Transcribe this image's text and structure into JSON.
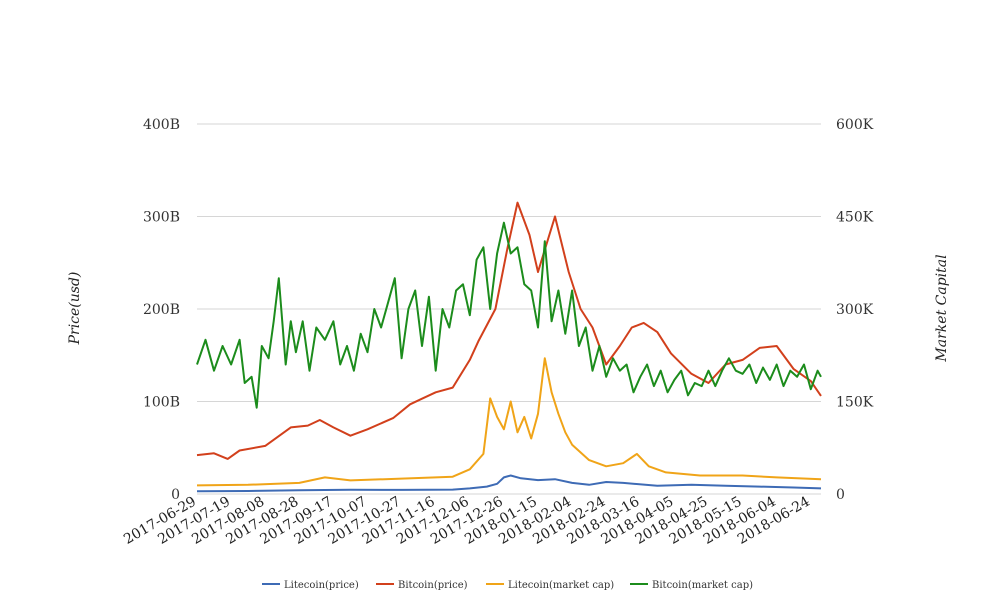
{
  "chart_data": {
    "type": "line",
    "x_range": [
      "2017-06-29",
      "2018-06-30"
    ],
    "x_ticks": [
      "2017-06-29",
      "2017-07-19",
      "2017-08-08",
      "2017-08-28",
      "2017-09-17",
      "2017-10-07",
      "2017-10-27",
      "2017-11-16",
      "2017-12-06",
      "2017-12-26",
      "2018-01-15",
      "2018-02-04",
      "2018-02-24",
      "2018-03-16",
      "2018-04-05",
      "2018-04-25",
      "2018-05-15",
      "2018-06-04",
      "2018-06-24"
    ],
    "y_left": {
      "label": "Price(usd)",
      "ticks": [
        "0",
        "100B",
        "200B",
        "300B",
        "400B"
      ],
      "range": [
        0,
        400
      ]
    },
    "y_right": {
      "label": "Market Capital",
      "ticks": [
        "0",
        "150K",
        "300K",
        "450K",
        "600K"
      ],
      "range": [
        0,
        600
      ]
    },
    "grid": true,
    "legend_position": "bottom",
    "series": [
      {
        "name": "Litecoin(price)",
        "color": "#3e6bb5",
        "axis": "left",
        "values": [
          [
            0,
            3
          ],
          [
            30,
            3.2
          ],
          [
            60,
            4
          ],
          [
            90,
            4.5
          ],
          [
            120,
            4.4
          ],
          [
            150,
            4.8
          ],
          [
            160,
            6
          ],
          [
            170,
            8
          ],
          [
            176,
            11
          ],
          [
            180,
            18
          ],
          [
            184,
            20
          ],
          [
            190,
            17
          ],
          [
            200,
            15
          ],
          [
            210,
            16
          ],
          [
            220,
            12
          ],
          [
            230,
            10
          ],
          [
            240,
            13
          ],
          [
            250,
            12
          ],
          [
            270,
            9
          ],
          [
            290,
            10
          ],
          [
            310,
            9
          ],
          [
            330,
            8
          ],
          [
            350,
            7
          ],
          [
            366,
            6
          ]
        ]
      },
      {
        "name": "Bitcoin(price)",
        "color": "#d2401c",
        "axis": "left",
        "values": [
          [
            0,
            42
          ],
          [
            10,
            44
          ],
          [
            18,
            38
          ],
          [
            25,
            47
          ],
          [
            40,
            52
          ],
          [
            55,
            72
          ],
          [
            65,
            74
          ],
          [
            72,
            80
          ],
          [
            80,
            72
          ],
          [
            90,
            63
          ],
          [
            100,
            70
          ],
          [
            115,
            82
          ],
          [
            125,
            97
          ],
          [
            132,
            103
          ],
          [
            140,
            110
          ],
          [
            150,
            115
          ],
          [
            160,
            145
          ],
          [
            165,
            165
          ],
          [
            175,
            200
          ],
          [
            182,
            265
          ],
          [
            188,
            315
          ],
          [
            195,
            280
          ],
          [
            200,
            240
          ],
          [
            205,
            270
          ],
          [
            210,
            300
          ],
          [
            218,
            240
          ],
          [
            225,
            200
          ],
          [
            232,
            180
          ],
          [
            240,
            140
          ],
          [
            248,
            160
          ],
          [
            255,
            180
          ],
          [
            262,
            185
          ],
          [
            270,
            175
          ],
          [
            278,
            152
          ],
          [
            290,
            130
          ],
          [
            300,
            120
          ],
          [
            310,
            140
          ],
          [
            320,
            145
          ],
          [
            330,
            158
          ],
          [
            340,
            160
          ],
          [
            350,
            135
          ],
          [
            360,
            122
          ],
          [
            366,
            106
          ]
        ]
      },
      {
        "name": "Litecoin(market cap)",
        "color": "#f0a418",
        "axis": "right",
        "values": [
          [
            0,
            14
          ],
          [
            30,
            15
          ],
          [
            60,
            18
          ],
          [
            75,
            27
          ],
          [
            90,
            22
          ],
          [
            120,
            25
          ],
          [
            150,
            28
          ],
          [
            160,
            40
          ],
          [
            168,
            65
          ],
          [
            172,
            155
          ],
          [
            176,
            125
          ],
          [
            180,
            105
          ],
          [
            184,
            150
          ],
          [
            188,
            100
          ],
          [
            192,
            125
          ],
          [
            196,
            90
          ],
          [
            200,
            130
          ],
          [
            204,
            220
          ],
          [
            208,
            165
          ],
          [
            212,
            130
          ],
          [
            216,
            100
          ],
          [
            220,
            80
          ],
          [
            230,
            55
          ],
          [
            240,
            45
          ],
          [
            250,
            50
          ],
          [
            258,
            65
          ],
          [
            265,
            45
          ],
          [
            275,
            35
          ],
          [
            295,
            30
          ],
          [
            320,
            30
          ],
          [
            340,
            27
          ],
          [
            366,
            24
          ]
        ]
      },
      {
        "name": "Bitcoin(market cap)",
        "color": "#1c8c1c",
        "axis": "right",
        "values": [
          [
            0,
            210
          ],
          [
            5,
            250
          ],
          [
            10,
            200
          ],
          [
            15,
            240
          ],
          [
            20,
            210
          ],
          [
            25,
            250
          ],
          [
            28,
            180
          ],
          [
            32,
            190
          ],
          [
            35,
            140
          ],
          [
            38,
            240
          ],
          [
            42,
            220
          ],
          [
            45,
            280
          ],
          [
            48,
            350
          ],
          [
            52,
            210
          ],
          [
            55,
            280
          ],
          [
            58,
            230
          ],
          [
            62,
            280
          ],
          [
            66,
            200
          ],
          [
            70,
            270
          ],
          [
            75,
            250
          ],
          [
            80,
            280
          ],
          [
            84,
            210
          ],
          [
            88,
            240
          ],
          [
            92,
            200
          ],
          [
            96,
            260
          ],
          [
            100,
            230
          ],
          [
            104,
            300
          ],
          [
            108,
            270
          ],
          [
            112,
            310
          ],
          [
            116,
            350
          ],
          [
            120,
            220
          ],
          [
            124,
            300
          ],
          [
            128,
            330
          ],
          [
            132,
            240
          ],
          [
            136,
            320
          ],
          [
            140,
            200
          ],
          [
            144,
            300
          ],
          [
            148,
            270
          ],
          [
            152,
            330
          ],
          [
            156,
            340
          ],
          [
            160,
            290
          ],
          [
            164,
            380
          ],
          [
            168,
            400
          ],
          [
            172,
            300
          ],
          [
            176,
            390
          ],
          [
            180,
            440
          ],
          [
            184,
            390
          ],
          [
            188,
            400
          ],
          [
            192,
            340
          ],
          [
            196,
            330
          ],
          [
            200,
            270
          ],
          [
            204,
            410
          ],
          [
            208,
            280
          ],
          [
            212,
            330
          ],
          [
            216,
            260
          ],
          [
            220,
            330
          ],
          [
            224,
            240
          ],
          [
            228,
            270
          ],
          [
            232,
            200
          ],
          [
            236,
            240
          ],
          [
            240,
            190
          ],
          [
            244,
            220
          ],
          [
            248,
            200
          ],
          [
            252,
            210
          ],
          [
            256,
            165
          ],
          [
            260,
            190
          ],
          [
            264,
            210
          ],
          [
            268,
            175
          ],
          [
            272,
            200
          ],
          [
            276,
            165
          ],
          [
            280,
            185
          ],
          [
            284,
            200
          ],
          [
            288,
            160
          ],
          [
            292,
            180
          ],
          [
            296,
            175
          ],
          [
            300,
            200
          ],
          [
            304,
            175
          ],
          [
            308,
            200
          ],
          [
            312,
            220
          ],
          [
            316,
            200
          ],
          [
            320,
            195
          ],
          [
            324,
            210
          ],
          [
            328,
            180
          ],
          [
            332,
            205
          ],
          [
            336,
            185
          ],
          [
            340,
            210
          ],
          [
            344,
            175
          ],
          [
            348,
            200
          ],
          [
            352,
            190
          ],
          [
            356,
            210
          ],
          [
            360,
            170
          ],
          [
            364,
            200
          ],
          [
            366,
            190
          ]
        ]
      }
    ]
  }
}
